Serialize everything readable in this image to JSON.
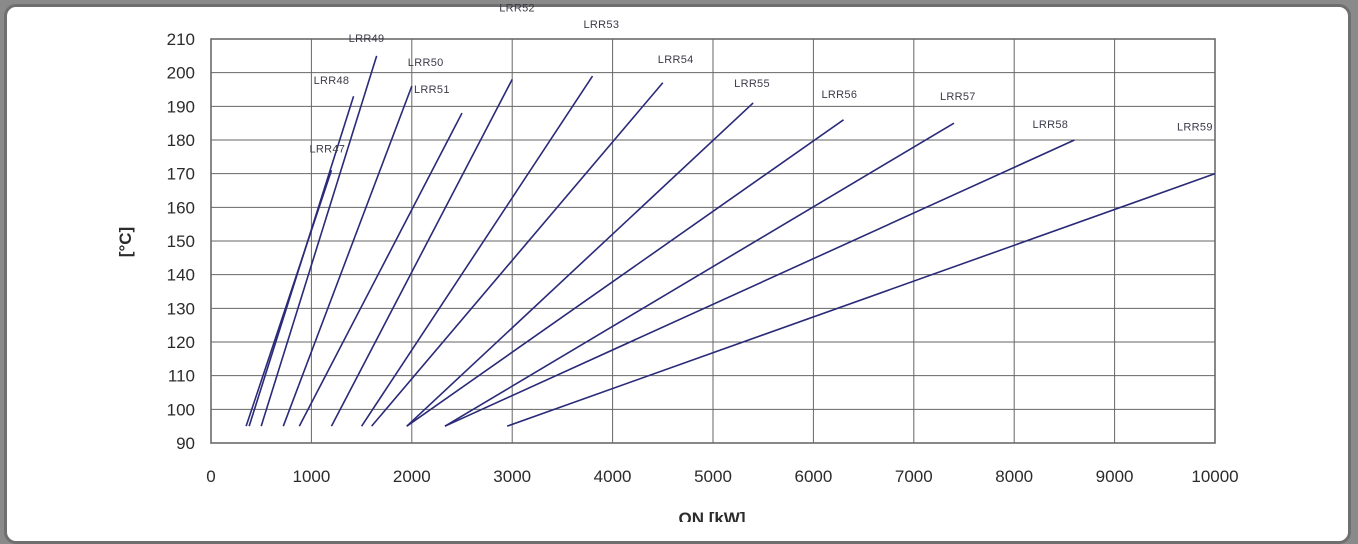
{
  "chart_data": {
    "type": "line",
    "xlabel": "QN [kW]",
    "ylabel": "[°C]",
    "xlim": [
      0,
      10000
    ],
    "ylim": [
      90,
      210
    ],
    "x_ticks": [
      0,
      1000,
      2000,
      3000,
      4000,
      5000,
      6000,
      7000,
      8000,
      9000,
      10000
    ],
    "y_ticks": [
      90,
      100,
      110,
      120,
      130,
      140,
      150,
      160,
      170,
      180,
      190,
      200,
      210
    ],
    "grid": true,
    "legend": "none (labels at line ends)",
    "line_color": "#2a2a78",
    "series": [
      {
        "name": "LRR47",
        "points": [
          [
            350,
            95
          ],
          [
            1200,
            171
          ]
        ]
      },
      {
        "name": "LRR48",
        "points": [
          [
            380,
            95
          ],
          [
            1420,
            193
          ]
        ]
      },
      {
        "name": "LRR49",
        "points": [
          [
            500,
            95
          ],
          [
            1650,
            205
          ]
        ]
      },
      {
        "name": "LRR50",
        "points": [
          [
            720,
            95
          ],
          [
            2000,
            196
          ]
        ]
      },
      {
        "name": "LRR51",
        "points": [
          [
            880,
            95
          ],
          [
            2500,
            188
          ]
        ]
      },
      {
        "name": "LRR52",
        "points": [
          [
            1200,
            95
          ],
          [
            3000,
            198
          ]
        ]
      },
      {
        "name": "LRR53",
        "points": [
          [
            1500,
            95
          ],
          [
            3800,
            199
          ]
        ]
      },
      {
        "name": "LRR54",
        "points": [
          [
            1600,
            95
          ],
          [
            4500,
            197
          ]
        ]
      },
      {
        "name": "LRR55",
        "points": [
          [
            1950,
            95
          ],
          [
            5400,
            191
          ]
        ]
      },
      {
        "name": "LRR56",
        "points": [
          [
            1950,
            95
          ],
          [
            6300,
            186
          ]
        ]
      },
      {
        "name": "LRR57",
        "points": [
          [
            2330,
            95
          ],
          [
            7400,
            185
          ]
        ]
      },
      {
        "name": "LRR58",
        "points": [
          [
            2330,
            95
          ],
          [
            8600,
            180
          ]
        ]
      },
      {
        "name": "LRR59",
        "points": [
          [
            2950,
            95
          ],
          [
            10000,
            170
          ]
        ]
      }
    ]
  }
}
